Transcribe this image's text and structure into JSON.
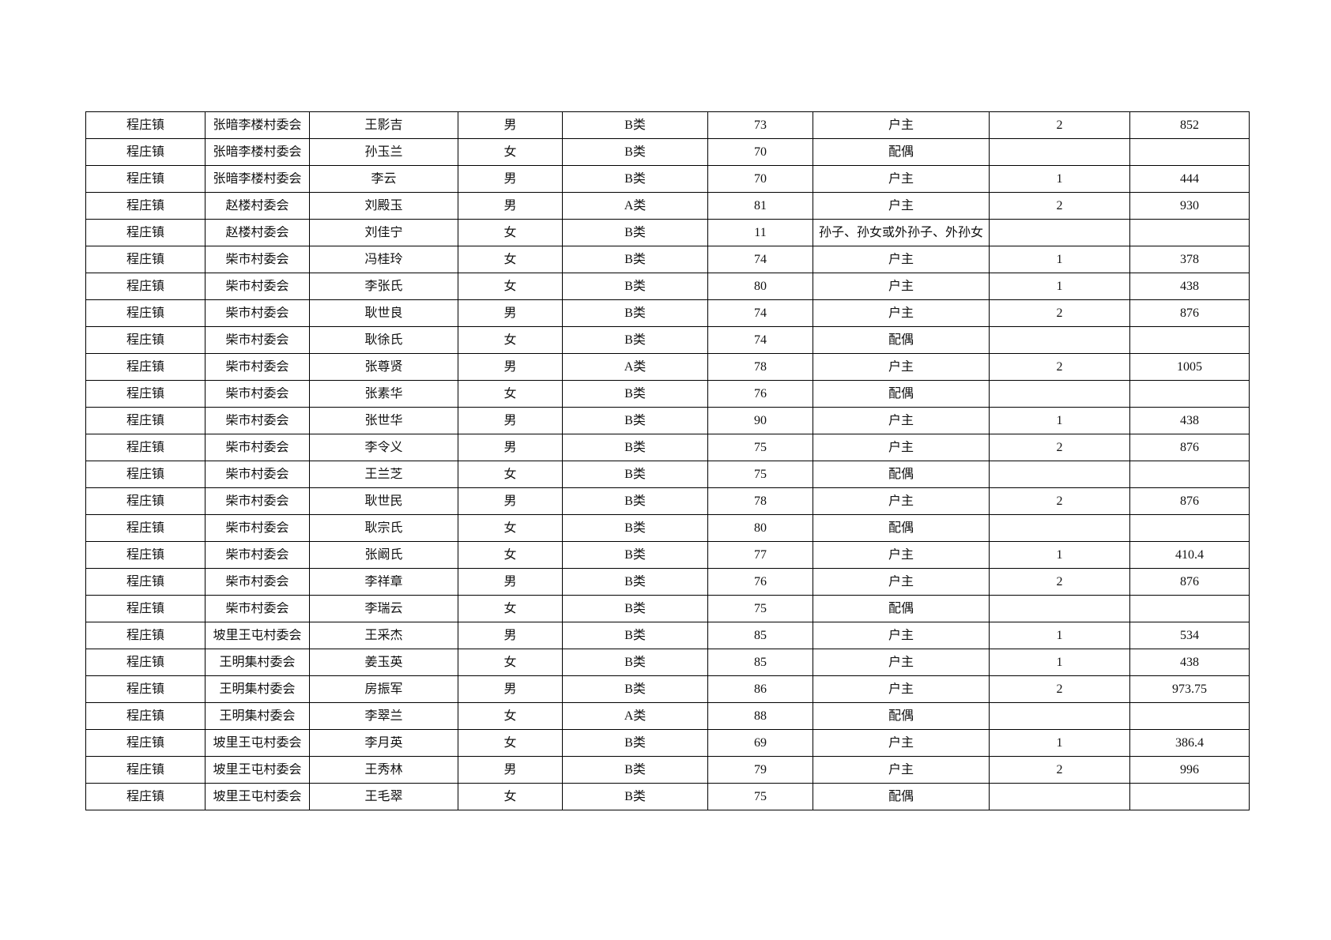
{
  "table": {
    "rows": [
      [
        "程庄镇",
        "张暗李楼村委会",
        "王影吉",
        "男",
        "B类",
        73,
        "户主",
        2,
        852
      ],
      [
        "程庄镇",
        "张暗李楼村委会",
        "孙玉兰",
        "女",
        "B类",
        70,
        "配偶",
        null,
        null
      ],
      [
        "程庄镇",
        "张暗李楼村委会",
        "李云",
        "男",
        "B类",
        70,
        "户主",
        1,
        444
      ],
      [
        "程庄镇",
        "赵楼村委会",
        "刘殿玉",
        "男",
        "A类",
        81,
        "户主",
        2,
        930
      ],
      [
        "程庄镇",
        "赵楼村委会",
        "刘佳宁",
        "女",
        "B类",
        11,
        "孙子、孙女或外孙子、外孙女",
        null,
        null
      ],
      [
        "程庄镇",
        "柴市村委会",
        "冯桂玲",
        "女",
        "B类",
        74,
        "户主",
        1,
        378
      ],
      [
        "程庄镇",
        "柴市村委会",
        "李张氏",
        "女",
        "B类",
        80,
        "户主",
        1,
        438
      ],
      [
        "程庄镇",
        "柴市村委会",
        "耿世良",
        "男",
        "B类",
        74,
        "户主",
        2,
        876
      ],
      [
        "程庄镇",
        "柴市村委会",
        "耿徐氏",
        "女",
        "B类",
        74,
        "配偶",
        null,
        null
      ],
      [
        "程庄镇",
        "柴市村委会",
        "张尊贤",
        "男",
        "A类",
        78,
        "户主",
        2,
        1005
      ],
      [
        "程庄镇",
        "柴市村委会",
        "张素华",
        "女",
        "B类",
        76,
        "配偶",
        null,
        null
      ],
      [
        "程庄镇",
        "柴市村委会",
        "张世华",
        "男",
        "B类",
        90,
        "户主",
        1,
        438
      ],
      [
        "程庄镇",
        "柴市村委会",
        "李令义",
        "男",
        "B类",
        75,
        "户主",
        2,
        876
      ],
      [
        "程庄镇",
        "柴市村委会",
        "王兰芝",
        "女",
        "B类",
        75,
        "配偶",
        null,
        null
      ],
      [
        "程庄镇",
        "柴市村委会",
        "耿世民",
        "男",
        "B类",
        78,
        "户主",
        2,
        876
      ],
      [
        "程庄镇",
        "柴市村委会",
        "耿宗氏",
        "女",
        "B类",
        80,
        "配偶",
        null,
        null
      ],
      [
        "程庄镇",
        "柴市村委会",
        "张阚氏",
        "女",
        "B类",
        77,
        "户主",
        1,
        410.4
      ],
      [
        "程庄镇",
        "柴市村委会",
        "李祥章",
        "男",
        "B类",
        76,
        "户主",
        2,
        876
      ],
      [
        "程庄镇",
        "柴市村委会",
        "李瑞云",
        "女",
        "B类",
        75,
        "配偶",
        null,
        null
      ],
      [
        "程庄镇",
        "坡里王屯村委会",
        "王采杰",
        "男",
        "B类",
        85,
        "户主",
        1,
        534
      ],
      [
        "程庄镇",
        "王明集村委会",
        "姜玉英",
        "女",
        "B类",
        85,
        "户主",
        1,
        438
      ],
      [
        "程庄镇",
        "王明集村委会",
        "房振军",
        "男",
        "B类",
        86,
        "户主",
        2,
        973.75
      ],
      [
        "程庄镇",
        "王明集村委会",
        "李翠兰",
        "女",
        "A类",
        88,
        "配偶",
        null,
        null
      ],
      [
        "程庄镇",
        "坡里王屯村委会",
        "李月英",
        "女",
        "B类",
        69,
        "户主",
        1,
        386.4
      ],
      [
        "程庄镇",
        "坡里王屯村委会",
        "王秀林",
        "男",
        "B类",
        79,
        "户主",
        2,
        996
      ],
      [
        "程庄镇",
        "坡里王屯村委会",
        "王毛翠",
        "女",
        "B类",
        75,
        "配偶",
        null,
        null
      ]
    ]
  }
}
